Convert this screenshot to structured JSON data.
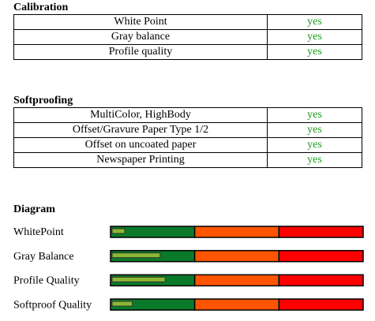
{
  "calibration": {
    "title": "Calibration",
    "rows": [
      [
        "White Point",
        "yes"
      ],
      [
        "Gray balance",
        "yes"
      ],
      [
        "Profile quality",
        "yes"
      ]
    ]
  },
  "softproofing": {
    "title": "Softproofing",
    "rows": [
      [
        "MultiColor, HighBody",
        "yes"
      ],
      [
        "Offset/Gravure Paper Type 1/2",
        "yes"
      ],
      [
        "Offset on uncoated paper",
        "yes"
      ],
      [
        "Newspaper Printing",
        "yes"
      ]
    ]
  },
  "diagram": {
    "title": "Diagram",
    "xlim": [
      0,
      100
    ],
    "zones": [
      "#0a7a2a",
      "#ff5500",
      "#ff0000"
    ],
    "bar_color": "#8ab832",
    "rows": [
      {
        "label": "WhitePoint",
        "value": 5
      },
      {
        "label": "Gray Balance",
        "value": 19
      },
      {
        "label": "Profile Quality",
        "value": 21
      },
      {
        "label": "Softproof Quality",
        "value": 8
      }
    ]
  }
}
